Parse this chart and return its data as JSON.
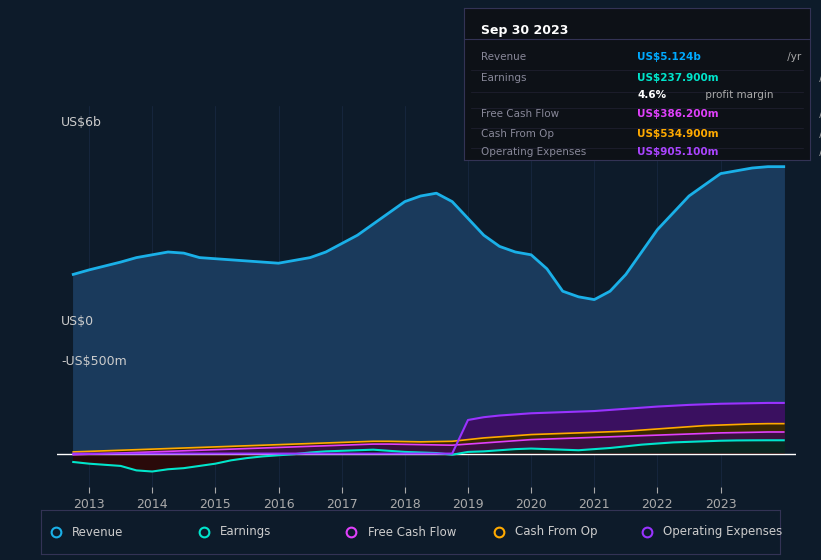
{
  "background_color": "#0d1b2a",
  "plot_bg_color": "#0d1b2a",
  "title_box": {
    "date": "Sep 30 2023",
    "rows": [
      {
        "label": "Revenue",
        "value": "US$5.124b",
        "suffix": " /yr",
        "value_color": "#00aaff"
      },
      {
        "label": "Earnings",
        "value": "US$237.900m",
        "suffix": " /yr",
        "value_color": "#00e5cc"
      },
      {
        "label": "",
        "value": "4.6%",
        "suffix": " profit margin",
        "value_color": "#ffffff"
      },
      {
        "label": "Free Cash Flow",
        "value": "US$386.200m",
        "suffix": " /yr",
        "value_color": "#e040fb"
      },
      {
        "label": "Cash From Op",
        "value": "US$534.900m",
        "suffix": " /yr",
        "value_color": "#ffaa00"
      },
      {
        "label": "Operating Expenses",
        "value": "US$905.100m",
        "suffix": " /yr",
        "value_color": "#aa44ff"
      }
    ]
  },
  "ylabel_top": "US$6b",
  "ylabel_zero": "US$0",
  "ylabel_neg": "-US$500m",
  "ylim": [
    -600,
    6200
  ],
  "xlim": [
    2012.5,
    2024.2
  ],
  "xticks": [
    2013,
    2014,
    2015,
    2016,
    2017,
    2018,
    2019,
    2020,
    2021,
    2022,
    2023
  ],
  "revenue_color": "#1ab0e8",
  "revenue_fill": "#1a3a5c",
  "earnings_color": "#00e5cc",
  "fcf_color": "#e040fb",
  "cashfromop_color": "#ffaa00",
  "opex_color": "#9933ff",
  "zero_line_color": "#ffffff",
  "grid_color": "#1e3050",
  "legend_items": [
    {
      "label": "Revenue",
      "color": "#1ab0e8"
    },
    {
      "label": "Earnings",
      "color": "#00e5cc"
    },
    {
      "label": "Free Cash Flow",
      "color": "#e040fb"
    },
    {
      "label": "Cash From Op",
      "color": "#ffaa00"
    },
    {
      "label": "Operating Expenses",
      "color": "#9933ff"
    }
  ],
  "x": [
    2012.75,
    2013.0,
    2013.25,
    2013.5,
    2013.75,
    2014.0,
    2014.25,
    2014.5,
    2014.75,
    2015.0,
    2015.25,
    2015.5,
    2015.75,
    2016.0,
    2016.25,
    2016.5,
    2016.75,
    2017.0,
    2017.25,
    2017.5,
    2017.75,
    2018.0,
    2018.25,
    2018.5,
    2018.75,
    2019.0,
    2019.25,
    2019.5,
    2019.75,
    2020.0,
    2020.25,
    2020.5,
    2020.75,
    2021.0,
    2021.25,
    2021.5,
    2021.75,
    2022.0,
    2022.25,
    2022.5,
    2022.75,
    2023.0,
    2023.25,
    2023.5,
    2023.75,
    2024.0
  ],
  "revenue": [
    3200,
    3280,
    3350,
    3420,
    3500,
    3550,
    3600,
    3580,
    3500,
    3480,
    3460,
    3440,
    3420,
    3400,
    3450,
    3500,
    3600,
    3750,
    3900,
    4100,
    4300,
    4500,
    4600,
    4650,
    4500,
    4200,
    3900,
    3700,
    3600,
    3550,
    3300,
    2900,
    2800,
    2750,
    2900,
    3200,
    3600,
    4000,
    4300,
    4600,
    4800,
    5000,
    5050,
    5100,
    5124,
    5124
  ],
  "earnings": [
    -150,
    -180,
    -200,
    -220,
    -300,
    -320,
    -280,
    -260,
    -220,
    -180,
    -120,
    -80,
    -50,
    -30,
    -10,
    20,
    40,
    50,
    60,
    70,
    50,
    30,
    20,
    10,
    -20,
    30,
    40,
    60,
    80,
    90,
    80,
    70,
    60,
    80,
    100,
    130,
    160,
    180,
    200,
    210,
    220,
    230,
    235,
    237,
    238,
    238
  ],
  "fcf": [
    -20,
    -10,
    0,
    10,
    20,
    30,
    40,
    50,
    60,
    70,
    80,
    90,
    100,
    110,
    120,
    130,
    140,
    150,
    160,
    170,
    170,
    165,
    160,
    155,
    150,
    170,
    190,
    210,
    230,
    250,
    260,
    270,
    280,
    290,
    300,
    310,
    320,
    330,
    340,
    350,
    360,
    370,
    375,
    380,
    386,
    386
  ],
  "cashfromop": [
    30,
    40,
    50,
    60,
    70,
    80,
    90,
    100,
    110,
    120,
    130,
    140,
    150,
    160,
    170,
    180,
    190,
    200,
    210,
    220,
    220,
    215,
    210,
    215,
    220,
    250,
    280,
    300,
    320,
    340,
    350,
    360,
    370,
    380,
    390,
    400,
    420,
    440,
    460,
    480,
    500,
    510,
    520,
    530,
    535,
    535
  ],
  "opex": [
    0,
    0,
    0,
    0,
    0,
    0,
    0,
    0,
    0,
    0,
    0,
    0,
    0,
    0,
    0,
    0,
    0,
    0,
    0,
    0,
    0,
    0,
    0,
    0,
    0,
    600,
    650,
    680,
    700,
    720,
    730,
    740,
    750,
    760,
    780,
    800,
    820,
    840,
    855,
    870,
    880,
    890,
    895,
    900,
    905,
    905
  ]
}
